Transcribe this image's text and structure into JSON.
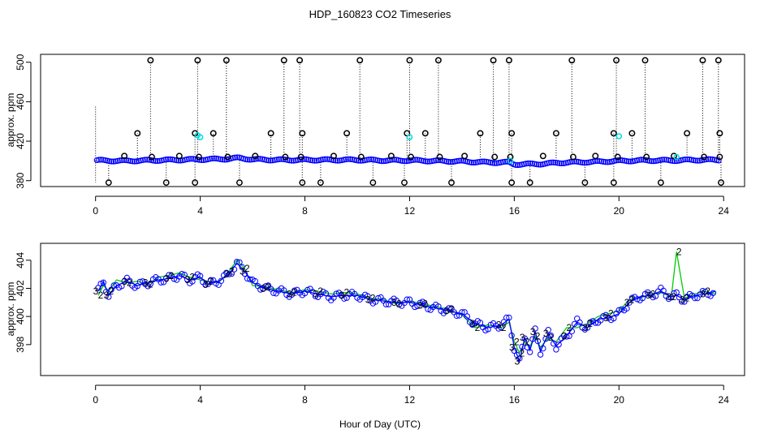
{
  "title": "HDP_160823  CO2 Timeseries",
  "xlabel": "Hour of Day (UTC)",
  "chart_data": [
    {
      "type": "scatter",
      "panel": "top",
      "ylabel": "approx. ppm",
      "xlim": [
        -2.1,
        24.8
      ],
      "ylim": [
        374,
        508
      ],
      "xticks": [
        0,
        4,
        8,
        12,
        16,
        20,
        24
      ],
      "yticks": [
        380,
        420,
        460,
        500
      ],
      "baseline": [
        [
          0.05,
          400.5
        ],
        [
          1,
          400
        ],
        [
          2,
          400.5
        ],
        [
          3,
          401
        ],
        [
          4,
          401.5
        ],
        [
          5,
          402
        ],
        [
          5.5,
          403
        ],
        [
          6,
          401.5
        ],
        [
          7,
          401
        ],
        [
          8,
          401
        ],
        [
          9,
          401
        ],
        [
          10,
          401
        ],
        [
          11,
          400.5
        ],
        [
          12,
          400.5
        ],
        [
          13,
          400
        ],
        [
          14,
          399.5
        ],
        [
          15,
          398.5
        ],
        [
          15.8,
          398.5
        ],
        [
          16,
          396.5
        ],
        [
          17,
          397
        ],
        [
          18,
          398.5
        ],
        [
          19,
          399
        ],
        [
          20,
          400
        ],
        [
          21,
          400.5
        ],
        [
          22,
          400.5
        ],
        [
          23,
          401
        ],
        [
          23.8,
          401
        ]
      ],
      "spikes_high": [
        2.1,
        3.9,
        5.0,
        7.2,
        7.8,
        10.1,
        12.0,
        13.1,
        15.2,
        15.8,
        18.2,
        19.9,
        21.0,
        23.2,
        23.8
      ],
      "spikes_mid": [
        1.6,
        3.8,
        4.5,
        6.7,
        7.9,
        9.6,
        11.9,
        12.6,
        14.7,
        15.9,
        17.6,
        19.8,
        20.5,
        22.6,
        23.85
      ],
      "spikes_low": [
        0.5,
        2.7,
        3.8,
        5.5,
        7.9,
        8.6,
        10.6,
        11.8,
        13.6,
        15.9,
        16.6,
        18.7,
        19.8,
        21.6,
        23.9
      ],
      "spikes_small": [
        1.1,
        3.2,
        6.1,
        9.1,
        11.3,
        14.1,
        17.1,
        19.1,
        22.1
      ],
      "cyan_points": [
        [
          3.9,
          426
        ],
        [
          4.0,
          424
        ],
        [
          12.0,
          424
        ],
        [
          15.85,
          400
        ],
        [
          20.0,
          425
        ],
        [
          22.2,
          404
        ]
      ]
    },
    {
      "type": "line",
      "panel": "bottom",
      "ylabel": "approx. ppm",
      "xlim": [
        -2.1,
        24.8
      ],
      "ylim": [
        395.8,
        405.2
      ],
      "xticks": [
        0,
        4,
        8,
        12,
        16,
        20,
        24
      ],
      "yticks": [
        398,
        400,
        402,
        404
      ],
      "series": [
        {
          "name": "3",
          "color": "#0000ff",
          "points": [
            [
              0.1,
              401.8
            ],
            [
              0.3,
              402.5
            ],
            [
              0.5,
              401.5
            ],
            [
              0.8,
              402.2
            ],
            [
              1.2,
              402.5
            ],
            [
              1.6,
              402.2
            ],
            [
              2,
              402.4
            ],
            [
              2.4,
              402.6
            ],
            [
              2.8,
              402.7
            ],
            [
              3.2,
              402.9
            ],
            [
              3.6,
              402.6
            ],
            [
              4,
              402.8
            ],
            [
              4.3,
              402.3
            ],
            [
              4.7,
              402.5
            ],
            [
              5.1,
              403
            ],
            [
              5.4,
              403.8
            ],
            [
              5.7,
              403.2
            ],
            [
              6,
              402.4
            ],
            [
              6.5,
              402
            ],
            [
              7,
              401.8
            ],
            [
              7.5,
              401.6
            ],
            [
              8,
              401.8
            ],
            [
              8.5,
              401.6
            ],
            [
              9,
              401.4
            ],
            [
              9.5,
              401.5
            ],
            [
              10,
              401.5
            ],
            [
              10.5,
              401.2
            ],
            [
              11,
              401.1
            ],
            [
              11.5,
              401
            ],
            [
              12,
              401
            ],
            [
              12.5,
              400.8
            ],
            [
              13,
              400.6
            ],
            [
              13.5,
              400.4
            ],
            [
              14,
              400.2
            ],
            [
              14.5,
              399.5
            ],
            [
              15,
              399.2
            ],
            [
              15.5,
              399.4
            ],
            [
              15.8,
              399.8
            ],
            [
              16,
              397.8
            ],
            [
              16.2,
              396.8
            ],
            [
              16.4,
              398.5
            ],
            [
              16.6,
              397.6
            ],
            [
              16.8,
              398.9
            ],
            [
              17,
              397.5
            ],
            [
              17.3,
              398.8
            ],
            [
              17.6,
              397.9
            ],
            [
              18,
              398.6
            ],
            [
              18.4,
              399.6
            ],
            [
              18.8,
              399.2
            ],
            [
              19.2,
              399.8
            ],
            [
              19.6,
              399.9
            ],
            [
              20,
              400.2
            ],
            [
              20.4,
              401
            ],
            [
              20.8,
              401.4
            ],
            [
              21.2,
              401.5
            ],
            [
              21.6,
              401.8
            ],
            [
              22,
              401.4
            ],
            [
              22.2,
              401.5
            ],
            [
              22.5,
              401.2
            ],
            [
              22.9,
              401.5
            ],
            [
              23.3,
              401.6
            ],
            [
              23.7,
              401.8
            ]
          ]
        },
        {
          "name": "2",
          "color": "#00cc00",
          "points": [
            [
              0.1,
              401.5
            ],
            [
              0.3,
              402.2
            ],
            [
              0.5,
              401.8
            ],
            [
              0.8,
              402.6
            ],
            [
              1.2,
              402.4
            ],
            [
              1.6,
              402.5
            ],
            [
              2,
              402.3
            ],
            [
              2.4,
              402.8
            ],
            [
              2.8,
              402.9
            ],
            [
              3.2,
              403.1
            ],
            [
              3.6,
              402.8
            ],
            [
              4,
              402.6
            ],
            [
              4.3,
              402.5
            ],
            [
              4.7,
              402.4
            ],
            [
              5.1,
              403.2
            ],
            [
              5.4,
              404
            ],
            [
              5.7,
              403.4
            ],
            [
              6,
              402.2
            ],
            [
              6.5,
              402.1
            ],
            [
              7,
              401.9
            ],
            [
              7.5,
              401.7
            ],
            [
              8,
              401.9
            ],
            [
              8.5,
              401.8
            ],
            [
              9,
              401.6
            ],
            [
              9.5,
              401.7
            ],
            [
              10,
              401.6
            ],
            [
              10.5,
              401.3
            ],
            [
              11,
              401.2
            ],
            [
              11.5,
              400.9
            ],
            [
              12,
              401.1
            ],
            [
              12.5,
              400.9
            ],
            [
              13,
              400.7
            ],
            [
              13.5,
              400.5
            ],
            [
              14,
              400.1
            ],
            [
              14.5,
              399.2
            ],
            [
              15,
              399.4
            ],
            [
              15.5,
              399.2
            ],
            [
              15.8,
              399.6
            ],
            [
              16,
              398.2
            ],
            [
              16.2,
              397.4
            ],
            [
              16.4,
              398.2
            ],
            [
              16.6,
              397.9
            ],
            [
              16.8,
              398.6
            ],
            [
              17,
              397.8
            ],
            [
              17.3,
              398.5
            ],
            [
              17.6,
              398.2
            ],
            [
              18,
              399.2
            ],
            [
              18.4,
              399.2
            ],
            [
              18.8,
              399.5
            ],
            [
              19.2,
              400
            ],
            [
              19.6,
              400.2
            ],
            [
              20,
              400.4
            ],
            [
              20.4,
              401.2
            ],
            [
              20.8,
              401.3
            ],
            [
              21.2,
              401.6
            ],
            [
              21.6,
              401.7
            ],
            [
              22,
              401.4
            ],
            [
              22.2,
              404.6
            ],
            [
              22.5,
              401.3
            ],
            [
              22.9,
              401.6
            ],
            [
              23.3,
              401.8
            ],
            [
              23.7,
              401.6
            ]
          ]
        }
      ]
    }
  ]
}
